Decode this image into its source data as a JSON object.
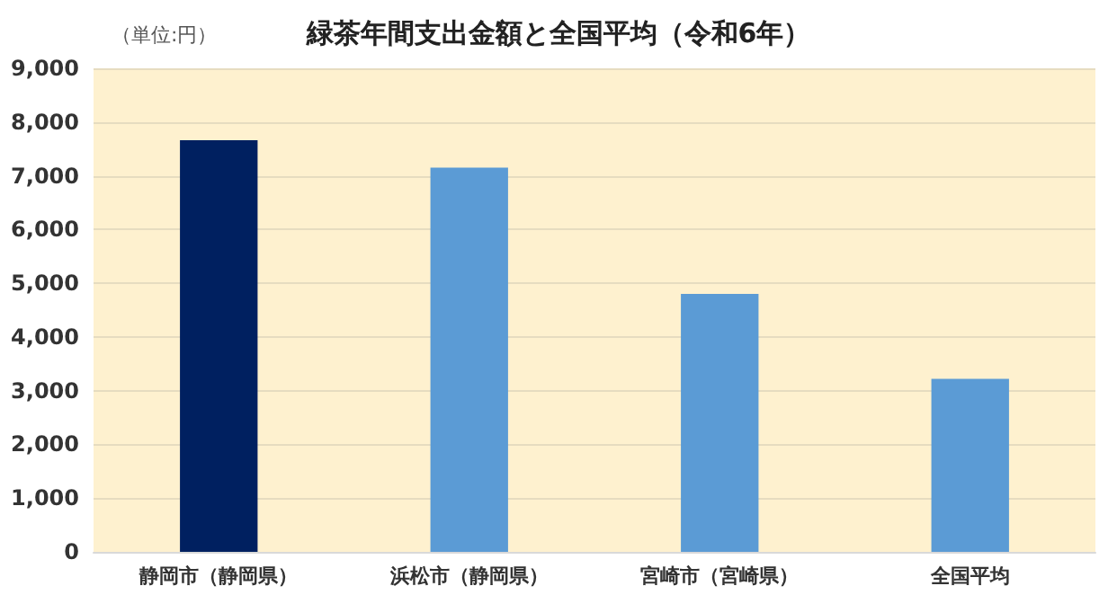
{
  "chart_data": {
    "type": "bar",
    "title": "緑茶年間支出金額と全国平均（令和6年）",
    "annotations": [
      "（単位:円）"
    ],
    "categories": [
      "静岡市（静岡県）",
      "浜松市（静岡県）",
      "宮崎市（宮崎県）",
      "全国平均"
    ],
    "values": [
      7660,
      7150,
      4800,
      3220
    ],
    "colors": [
      "#002060",
      "#5b9bd5",
      "#5b9bd5",
      "#5b9bd5"
    ],
    "ylim": [
      0,
      9000
    ],
    "yticks": [
      0,
      {
        "value": 1000,
        "label": "1,000"
      },
      {
        "value": 2000,
        "label": "2,000"
      },
      {
        "value": 3000,
        "label": "3,000"
      },
      {
        "value": 4000,
        "label": "4,000"
      },
      {
        "value": 5000,
        "label": "5,000"
      },
      {
        "value": 6000,
        "label": "6,000"
      },
      {
        "value": 7000,
        "label": "7,000"
      },
      {
        "value": 8000,
        "label": "8,000"
      },
      {
        "value": 9000,
        "label": "9,000"
      }
    ],
    "grid": "y"
  }
}
